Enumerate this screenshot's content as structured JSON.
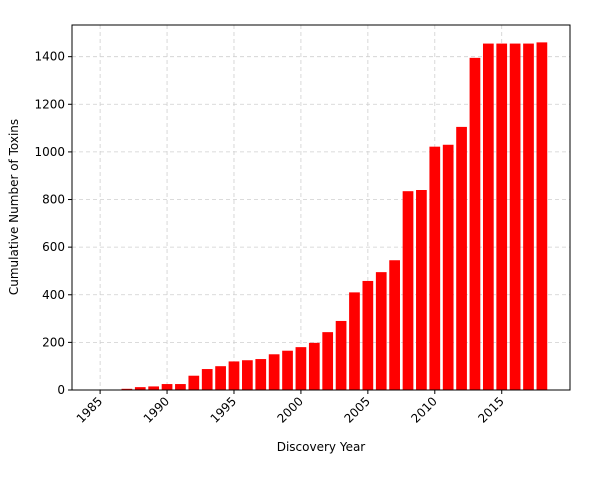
{
  "chart_data": {
    "type": "bar",
    "xlabel": "Discovery Year",
    "ylabel": "Cumulative Number of Toxins",
    "color": "#ff0000",
    "grid": true,
    "x": [
      1985,
      1986,
      1987,
      1988,
      1989,
      1990,
      1991,
      1992,
      1993,
      1994,
      1995,
      1996,
      1997,
      1998,
      1999,
      2000,
      2001,
      2002,
      2003,
      2004,
      2005,
      2006,
      2007,
      2008,
      2009,
      2010,
      2011,
      2012,
      2013,
      2014,
      2015,
      2016,
      2017,
      2018
    ],
    "values": [
      0,
      1,
      5,
      12,
      15,
      25,
      25,
      60,
      88,
      100,
      120,
      125,
      130,
      150,
      165,
      180,
      198,
      243,
      290,
      410,
      458,
      495,
      545,
      835,
      840,
      1022,
      1030,
      1105,
      1395,
      1455,
      1455,
      1455,
      1455,
      1460
    ],
    "xlim": [
      1982.9,
      2020.1
    ],
    "xticks": [
      1985,
      1990,
      1995,
      2000,
      2005,
      2010,
      2015
    ],
    "ylim": [
      0,
      1533
    ],
    "yticks": [
      0,
      200,
      400,
      600,
      800,
      1000,
      1200,
      1400
    ]
  }
}
